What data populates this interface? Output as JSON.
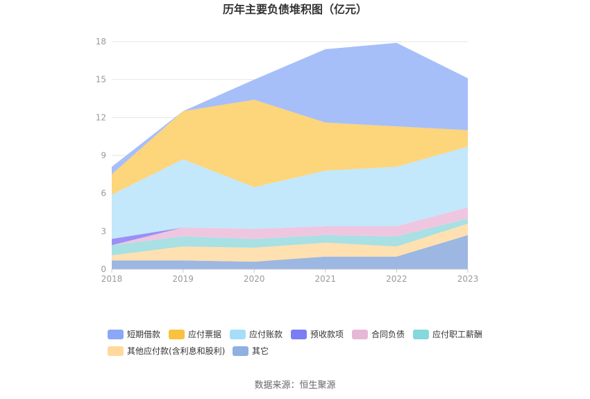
{
  "chart_data": {
    "type": "area",
    "stacked": true,
    "title": "历年主要负债堆积图（亿元）",
    "x": [
      "2018",
      "2019",
      "2020",
      "2021",
      "2022",
      "2023"
    ],
    "ylim": [
      0,
      18
    ],
    "yticks": [
      "0",
      "3",
      "6",
      "9",
      "12",
      "15",
      "18"
    ],
    "grid": true,
    "legend_position": "bottom",
    "series": [
      {
        "name": "其它",
        "color": "#9cb7e2",
        "values": [
          0.7,
          0.7,
          0.6,
          1.0,
          1.0,
          2.7
        ]
      },
      {
        "name": "其他应付款(含利息和股利)",
        "color": "#ffe0b0",
        "values": [
          0.4,
          1.1,
          1.1,
          1.1,
          0.8,
          0.9
        ]
      },
      {
        "name": "应付职工薪酬",
        "color": "#a8e0e3",
        "values": [
          0.8,
          0.8,
          0.7,
          0.6,
          0.8,
          0.4
        ]
      },
      {
        "name": "合同负债",
        "color": "#efc6e0",
        "values": [
          0.0,
          0.7,
          0.8,
          0.7,
          0.8,
          0.9
        ]
      },
      {
        "name": "预收款项",
        "color": "#9a90f5",
        "values": [
          0.5,
          0.0,
          0.0,
          0.0,
          0.0,
          0.0
        ]
      },
      {
        "name": "应付账款",
        "color": "#c3e7fb",
        "values": [
          3.5,
          5.4,
          3.3,
          4.4,
          4.7,
          4.8
        ]
      },
      {
        "name": "应付票据",
        "color": "#fdd57a",
        "values": [
          1.6,
          3.8,
          6.9,
          3.8,
          3.2,
          1.3
        ]
      },
      {
        "name": "短期借款",
        "color": "#a6bff9",
        "values": [
          0.6,
          0.0,
          1.6,
          5.8,
          6.6,
          4.1
        ]
      }
    ],
    "legend_order": [
      "短期借款",
      "应付票据",
      "应付账款",
      "预收款项",
      "合同负债",
      "应付职工薪酬",
      "其他应付款(含利息和股利)",
      "其它"
    ],
    "legend_swatch_colors": {
      "短期借款": "#8aa8f7",
      "应付票据": "#f9c33f",
      "应付账款": "#a6def9",
      "预收款项": "#7b7df2",
      "合同负债": "#e6b8d8",
      "应付职工薪酬": "#85d8dc",
      "其他应付款(含利息和股利)": "#ffd89c",
      "其它": "#8fb0e0"
    },
    "source": "数据来源：恒生聚源"
  }
}
